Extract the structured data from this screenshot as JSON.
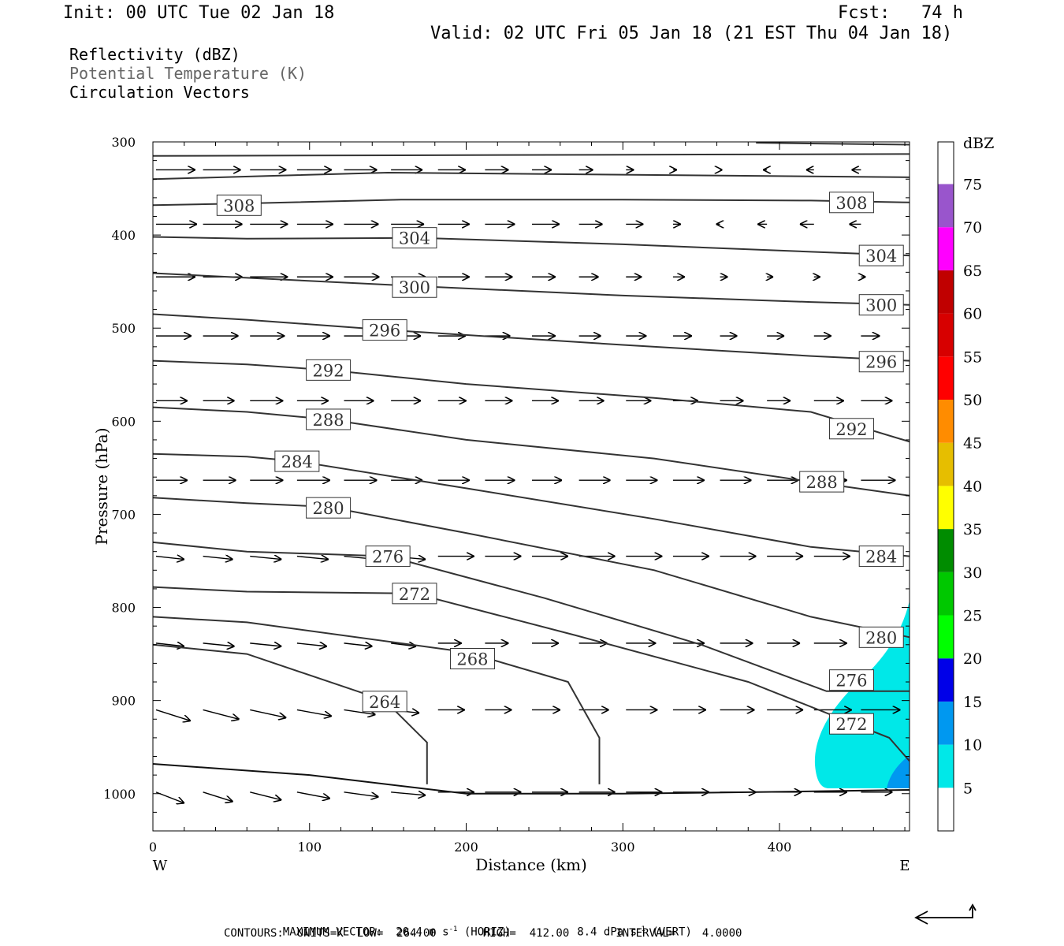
{
  "header": {
    "init": "Init: 00 UTC Tue 02 Jan 18",
    "fcst": "Fcst:   74 h",
    "valid": "Valid: 02 UTC Fri 05 Jan 18 (21 EST Thu 04 Jan 18)"
  },
  "legend_lines": [
    "Reflectivity (dBZ)",
    "Potential Temperature (K)",
    "Circulation Vectors"
  ],
  "footer": {
    "max_vector_label": "MAXIMUM VECTOR:",
    "horiz_value": "20.4 m s",
    "horiz_unit": "(HORIZ)",
    "vert_value": "8.4 dPa s",
    "vert_unit": "(VERT)",
    "contours": "CONTOURS:  UNITS=K  LOW=  264.00       HIGH=  412.00       INTERVAL=    4.0000"
  },
  "chart_data": {
    "type": "cross-section",
    "xlabel": "Distance (km)",
    "ylabel": "Pressure (hPa)",
    "xlim": [
      0,
      483
    ],
    "ylim": [
      1040,
      300
    ],
    "xticks": [
      0,
      100,
      200,
      300,
      400
    ],
    "yticks": [
      300,
      400,
      500,
      600,
      700,
      800,
      900,
      1000
    ],
    "x_end_labels": {
      "left": "W",
      "right": "E"
    },
    "colorbar": {
      "title": "dBZ",
      "levels": [
        5,
        10,
        15,
        20,
        25,
        30,
        35,
        40,
        45,
        50,
        55,
        60,
        65,
        70,
        75
      ],
      "colors": [
        "#00e8e8",
        "#0098f0",
        "#0000e8",
        "#00ff00",
        "#00c800",
        "#008c00",
        "#ffff00",
        "#e6be00",
        "#ff8c00",
        "#ff0000",
        "#d70000",
        "#c00000",
        "#ff00ff",
        "#9955cc",
        "#ffffff"
      ]
    },
    "theta_contours": [
      {
        "value": 308,
        "points": [
          [
            0,
            368
          ],
          [
            60,
            366
          ],
          [
            160,
            362
          ],
          [
            300,
            362
          ],
          [
            420,
            363
          ],
          [
            483,
            365
          ]
        ],
        "labels": [
          [
            55,
            368
          ],
          [
            446,
            365
          ]
        ]
      },
      {
        "value": 304,
        "points": [
          [
            0,
            402
          ],
          [
            60,
            404
          ],
          [
            170,
            403
          ],
          [
            300,
            410
          ],
          [
            420,
            418
          ],
          [
            483,
            422
          ]
        ],
        "labels": [
          [
            167,
            403
          ],
          [
            465,
            422
          ]
        ]
      },
      {
        "value": 300,
        "points": [
          [
            0,
            441
          ],
          [
            60,
            446
          ],
          [
            170,
            455
          ],
          [
            300,
            465
          ],
          [
            420,
            472
          ],
          [
            483,
            475
          ]
        ],
        "labels": [
          [
            167,
            456
          ],
          [
            465,
            475
          ]
        ]
      },
      {
        "value": 296,
        "points": [
          [
            0,
            485
          ],
          [
            60,
            491
          ],
          [
            150,
            502
          ],
          [
            300,
            518
          ],
          [
            420,
            530
          ],
          [
            483,
            535
          ]
        ],
        "labels": [
          [
            148,
            502
          ],
          [
            465,
            536
          ]
        ]
      },
      {
        "value": 292,
        "points": [
          [
            0,
            535
          ],
          [
            60,
            539
          ],
          [
            112,
            545
          ],
          [
            200,
            560
          ],
          [
            320,
            575
          ],
          [
            420,
            590
          ],
          [
            483,
            622
          ]
        ],
        "labels": [
          [
            112,
            545
          ],
          [
            446,
            608
          ]
        ]
      },
      {
        "value": 288,
        "points": [
          [
            0,
            585
          ],
          [
            60,
            590
          ],
          [
            112,
            598
          ],
          [
            200,
            620
          ],
          [
            320,
            640
          ],
          [
            420,
            665
          ],
          [
            483,
            680
          ]
        ],
        "labels": [
          [
            112,
            598
          ],
          [
            427,
            665
          ]
        ]
      },
      {
        "value": 284,
        "points": [
          [
            0,
            635
          ],
          [
            60,
            638
          ],
          [
            92,
            643
          ],
          [
            200,
            672
          ],
          [
            320,
            705
          ],
          [
            420,
            735
          ],
          [
            483,
            745
          ]
        ],
        "labels": [
          [
            92,
            643
          ],
          [
            465,
            745
          ]
        ]
      },
      {
        "value": 280,
        "points": [
          [
            0,
            682
          ],
          [
            60,
            688
          ],
          [
            112,
            692
          ],
          [
            200,
            720
          ],
          [
            320,
            760
          ],
          [
            420,
            810
          ],
          [
            483,
            832
          ]
        ],
        "labels": [
          [
            112,
            693
          ],
          [
            465,
            832
          ]
        ]
      },
      {
        "value": 276,
        "points": [
          [
            0,
            730
          ],
          [
            60,
            740
          ],
          [
            150,
            745
          ],
          [
            250,
            790
          ],
          [
            350,
            840
          ],
          [
            430,
            890
          ],
          [
            483,
            890
          ]
        ],
        "labels": [
          [
            150,
            745
          ],
          [
            446,
            878
          ]
        ]
      },
      {
        "value": 272,
        "points": [
          [
            0,
            778
          ],
          [
            60,
            783
          ],
          [
            167,
            785
          ],
          [
            270,
            830
          ],
          [
            380,
            880
          ],
          [
            440,
            920
          ],
          [
            470,
            940
          ],
          [
            483,
            965
          ]
        ],
        "labels": [
          [
            167,
            785
          ],
          [
            446,
            925
          ]
        ]
      },
      {
        "value": 268,
        "points": [
          [
            0,
            810
          ],
          [
            60,
            816
          ],
          [
            200,
            848
          ],
          [
            265,
            880
          ],
          [
            285,
            940
          ],
          [
            285,
            990
          ]
        ],
        "labels": [
          [
            204,
            855
          ]
        ]
      },
      {
        "value": 264,
        "points": [
          [
            0,
            840
          ],
          [
            60,
            850
          ],
          [
            148,
            900
          ],
          [
            175,
            945
          ],
          [
            175,
            990
          ]
        ],
        "labels": [
          [
            148,
            901
          ]
        ]
      }
    ],
    "surface_pressure_line": [
      [
        0,
        968
      ],
      [
        100,
        980
      ],
      [
        200,
        1000
      ],
      [
        300,
        1000
      ],
      [
        400,
        998
      ],
      [
        483,
        996
      ]
    ]
  }
}
